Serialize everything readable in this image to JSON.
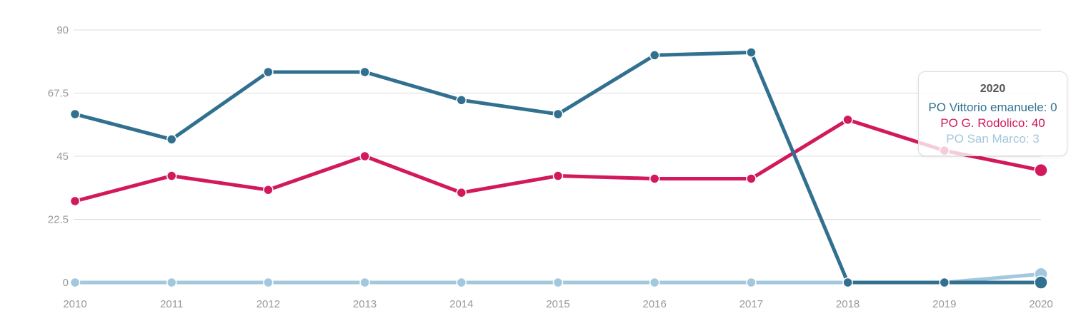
{
  "chart_data": {
    "type": "line",
    "x": [
      2010,
      2011,
      2012,
      2013,
      2014,
      2015,
      2016,
      2017,
      2018,
      2019,
      2020
    ],
    "x_labels": [
      "2010",
      "2011",
      "2012",
      "2013",
      "2014",
      "2015",
      "2016",
      "2017",
      "2018",
      "2019",
      "2020"
    ],
    "series": [
      {
        "name": "PO Vittorio emanuele",
        "color": "#31708f",
        "values": [
          60,
          51,
          75,
          75,
          65,
          60,
          81,
          82,
          0,
          0,
          0
        ]
      },
      {
        "name": "PO G. Rodolico",
        "color": "#d1195c",
        "values": [
          29,
          38,
          33,
          45,
          32,
          38,
          37,
          37,
          58,
          47,
          40
        ]
      },
      {
        "name": "PO San Marco",
        "color": "#a3c7dc",
        "values": [
          0,
          0,
          0,
          0,
          0,
          0,
          0,
          0,
          0,
          0,
          3
        ]
      }
    ],
    "ylim": [
      0,
      90
    ],
    "yticks": [
      {
        "value": 90,
        "label": "90"
      },
      {
        "value": 67.5,
        "label": "67.5"
      },
      {
        "value": 45,
        "label": "45"
      },
      {
        "value": 22.5,
        "label": "22.5"
      },
      {
        "value": 0,
        "label": "0"
      }
    ],
    "grid": true,
    "legend_position": "tooltip-only",
    "highlighted_x": 2020
  },
  "colors": {
    "background": "#ffffff",
    "gridline": "#dcdcdc",
    "axis_label": "#999999",
    "tooltip_title": "#555555",
    "tooltip_border": "#dddddd"
  },
  "tooltip": {
    "title": "2020",
    "rows": [
      {
        "text": "PO Vittorio emanuele: 0",
        "color": "#31708f"
      },
      {
        "text": "PO G. Rodolico: 40",
        "color": "#d1195c"
      },
      {
        "text": "PO San Marco: 3",
        "color": "#a3c7dc"
      }
    ]
  }
}
